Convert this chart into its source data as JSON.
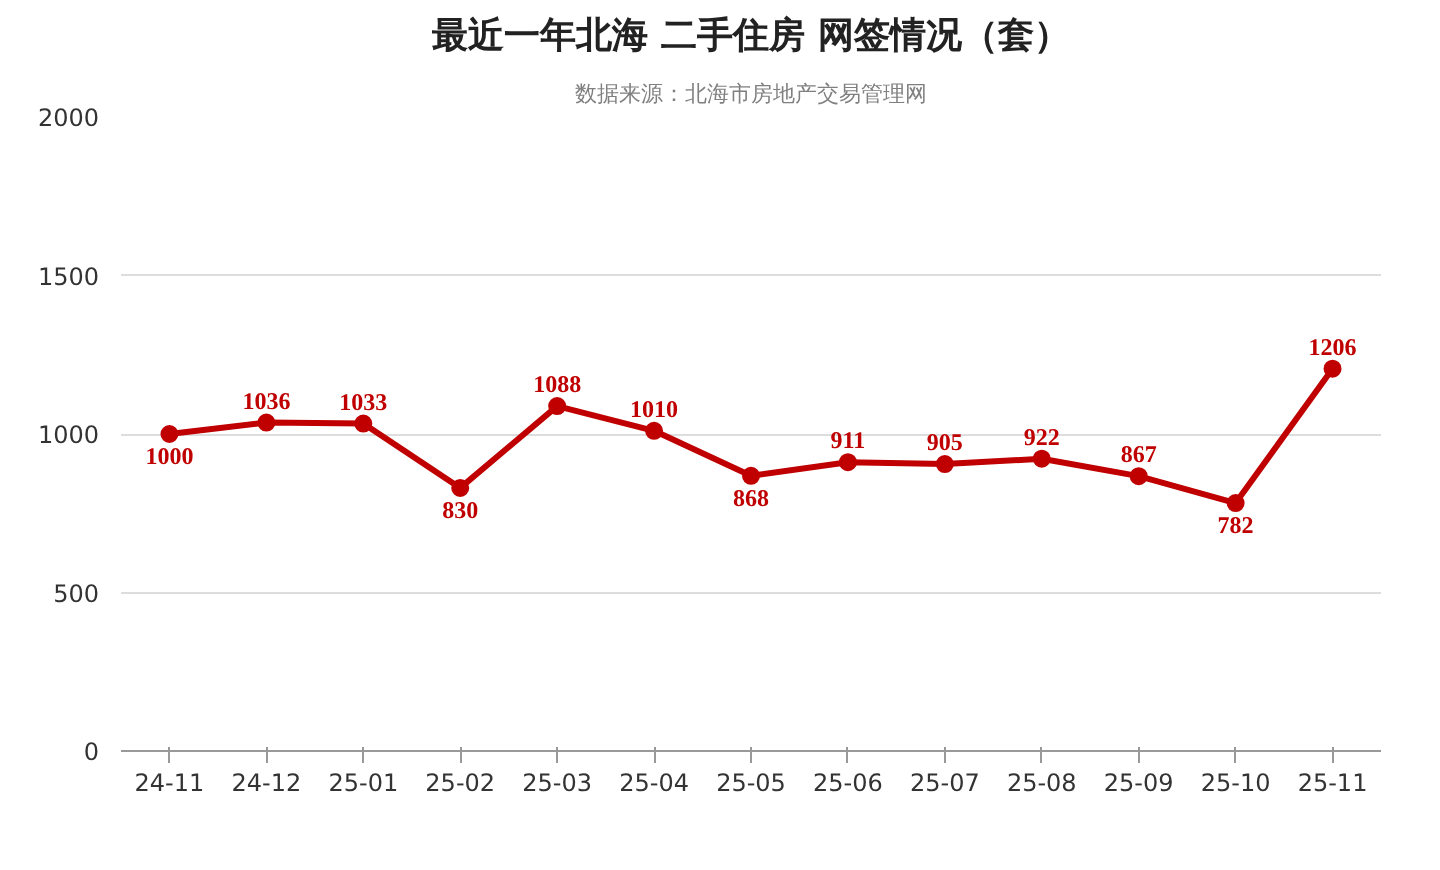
{
  "chart_data": {
    "type": "line",
    "title": "最近一年北海 二手住房 网签情况（套）",
    "subtitle": "数据来源：北海市房地产交易管理网",
    "categories": [
      "24-11",
      "24-12",
      "25-01",
      "25-02",
      "25-03",
      "25-04",
      "25-05",
      "25-06",
      "25-07",
      "25-08",
      "25-09",
      "25-10",
      "25-11"
    ],
    "series": [
      {
        "color": "#c00000",
        "values": [
          1000,
          1036,
          1033,
          830,
          1088,
          1010,
          868,
          911,
          905,
          922,
          867,
          782,
          1206
        ]
      }
    ],
    "ylim": [
      0,
      2000
    ],
    "yticks": [
      0,
      500,
      1000,
      1500,
      2000
    ],
    "grid": "y",
    "marker": "circle",
    "line_style": "solid",
    "data_labels": true
  }
}
